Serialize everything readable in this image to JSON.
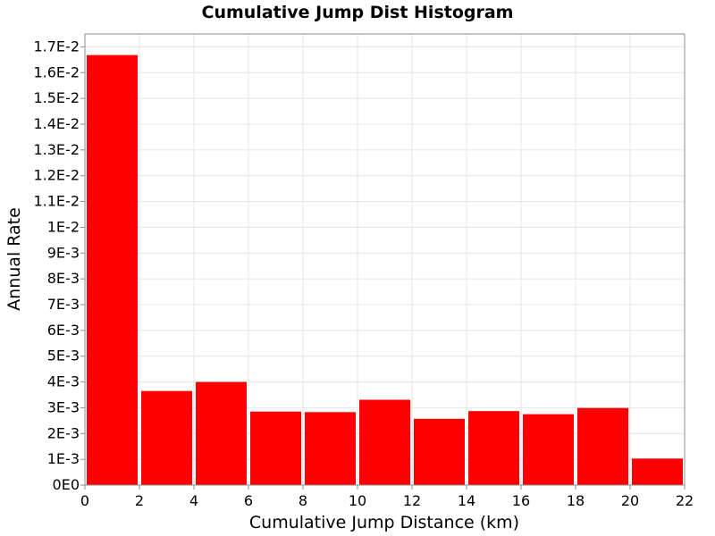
{
  "chart_data": {
    "type": "bar",
    "title": "Cumulative Jump Dist Histogram",
    "xlabel": "Cumulative Jump Distance (km)",
    "ylabel": "Annual Rate",
    "xlim": [
      0,
      22
    ],
    "ylim": [
      0,
      0.0175
    ],
    "x_ticks": [
      0,
      2,
      4,
      6,
      8,
      10,
      12,
      14,
      16,
      18,
      20,
      22
    ],
    "x_tick_labels": [
      "0",
      "2",
      "4",
      "6",
      "8",
      "10",
      "12",
      "14",
      "16",
      "18",
      "20",
      "22"
    ],
    "y_ticks": [
      0,
      0.001,
      0.002,
      0.003,
      0.004,
      0.005,
      0.006,
      0.007,
      0.008,
      0.009,
      0.01,
      0.011,
      0.012,
      0.013,
      0.014,
      0.015,
      0.016,
      0.017
    ],
    "y_tick_labels": [
      "0E0",
      "1E-3",
      "2E-3",
      "3E-3",
      "4E-3",
      "5E-3",
      "6E-3",
      "7E-3",
      "8E-3",
      "9E-3",
      "1E-2",
      "1.1E-2",
      "1.2E-2",
      "1.3E-2",
      "1.4E-2",
      "1.5E-2",
      "1.6E-2",
      "1.7E-2"
    ],
    "grid": true,
    "bar_color": "#ff0000",
    "bars": [
      {
        "x_start": 0,
        "x_end": 2,
        "value": 0.01668
      },
      {
        "x_start": 2,
        "x_end": 4,
        "value": 0.00365
      },
      {
        "x_start": 4,
        "x_end": 6,
        "value": 0.004
      },
      {
        "x_start": 6,
        "x_end": 8,
        "value": 0.00285
      },
      {
        "x_start": 8,
        "x_end": 10,
        "value": 0.00283
      },
      {
        "x_start": 10,
        "x_end": 12,
        "value": 0.00331
      },
      {
        "x_start": 12,
        "x_end": 14,
        "value": 0.00257
      },
      {
        "x_start": 14,
        "x_end": 16,
        "value": 0.00287
      },
      {
        "x_start": 16,
        "x_end": 18,
        "value": 0.00275
      },
      {
        "x_start": 18,
        "x_end": 20,
        "value": 0.00299
      },
      {
        "x_start": 20,
        "x_end": 22,
        "value": 0.00103
      }
    ]
  }
}
